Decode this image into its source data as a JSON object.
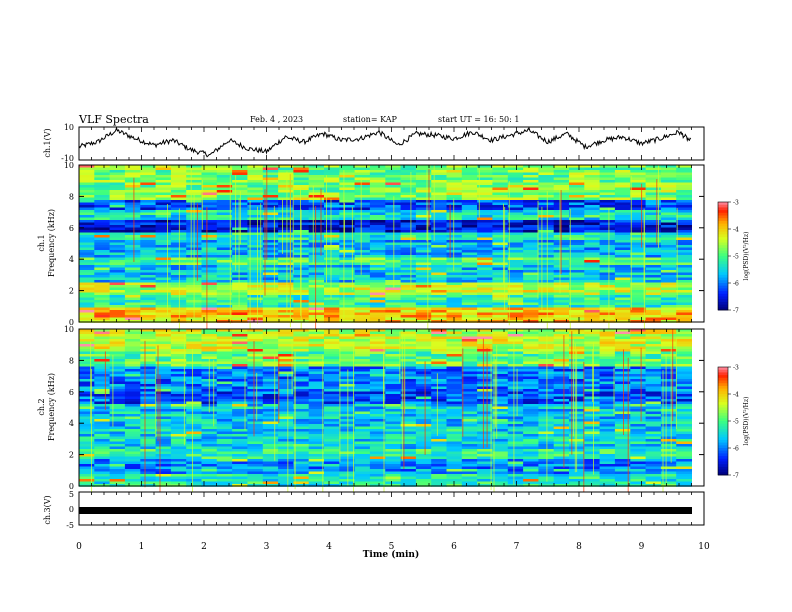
{
  "header": {
    "title": "VLF Spectra",
    "date": "Feb. 4 , 2023",
    "station": "station= KAP",
    "start": "start  UT =   16: 50: 1"
  },
  "chart_data": [
    {
      "id": "ch1-waveform",
      "type": "line",
      "ylabel": "ch.1(V)",
      "ylim": [
        -10,
        10
      ],
      "yticks": [
        "10",
        "-10"
      ],
      "xlim": [
        0,
        10
      ],
      "series": [
        {
          "x": [
            0,
            0.3,
            0.6,
            0.9,
            1.2,
            1.5,
            1.8,
            2.1,
            2.4,
            2.7,
            3.0,
            3.3,
            3.6,
            3.9,
            4.2,
            4.5,
            4.8,
            5.1,
            5.4,
            5.7,
            6.0,
            6.3,
            6.6,
            6.9,
            7.2,
            7.5,
            7.8,
            8.1,
            8.4,
            8.7,
            9.0,
            9.3,
            9.6,
            9.8
          ],
          "y": [
            -2,
            1,
            8,
            3,
            -1,
            2,
            -4,
            -7,
            2,
            -3,
            -5,
            4,
            1,
            6,
            2,
            3,
            7,
            -1,
            6,
            5,
            3,
            7,
            2,
            5,
            8,
            1,
            6,
            -2,
            2,
            4,
            0,
            3,
            7,
            1
          ]
        }
      ]
    },
    {
      "id": "ch1-spectrogram",
      "type": "heatmap",
      "xlim": [
        0,
        10
      ],
      "ylim": [
        0,
        10
      ],
      "ylabel": "ch.1",
      "ylabel2": "Frequency  (kHz)",
      "yticks": [
        "0",
        "2",
        "4",
        "6",
        "8",
        "10"
      ],
      "colorbar": {
        "label": "log(PSD)(V²/Hz)",
        "ticks": [
          "-3",
          "-4",
          "-5",
          "-6",
          "-7"
        ],
        "range": [
          -7,
          -3
        ]
      },
      "bands": [
        {
          "f0": 0.0,
          "f1": 0.9,
          "level": -4.0
        },
        {
          "f0": 0.9,
          "f1": 1.8,
          "level": -5.2
        },
        {
          "f0": 1.8,
          "f1": 2.5,
          "level": -4.5
        },
        {
          "f0": 2.5,
          "f1": 3.6,
          "level": -5.6
        },
        {
          "f0": 3.6,
          "f1": 4.2,
          "level": -5.0
        },
        {
          "f0": 4.2,
          "f1": 5.2,
          "level": -5.7
        },
        {
          "f0": 5.2,
          "f1": 5.7,
          "level": -5.3
        },
        {
          "f0": 5.7,
          "f1": 6.5,
          "level": -6.6
        },
        {
          "f0": 6.5,
          "f1": 7.1,
          "level": -5.4
        },
        {
          "f0": 7.1,
          "f1": 7.8,
          "level": -6.2
        },
        {
          "f0": 7.8,
          "f1": 10.0,
          "level": -4.8
        }
      ]
    },
    {
      "id": "ch2-spectrogram",
      "type": "heatmap",
      "xlim": [
        0,
        10
      ],
      "ylim": [
        0,
        10
      ],
      "ylabel": "ch.2",
      "ylabel2": "Frequency  (kHz)",
      "yticks": [
        "0",
        "2",
        "4",
        "6",
        "8",
        "10"
      ],
      "colorbar": {
        "label": "log(PSD)(V²/Hz)",
        "ticks": [
          "-3",
          "-4",
          "-5",
          "-6",
          "-7"
        ],
        "range": [
          -7,
          -3
        ]
      },
      "bands": [
        {
          "f0": 0.0,
          "f1": 0.8,
          "level": -5.3
        },
        {
          "f0": 0.8,
          "f1": 1.8,
          "level": -5.9
        },
        {
          "f0": 1.8,
          "f1": 2.4,
          "level": -5.2
        },
        {
          "f0": 2.4,
          "f1": 3.8,
          "level": -5.5
        },
        {
          "f0": 3.8,
          "f1": 5.2,
          "level": -5.6
        },
        {
          "f0": 5.2,
          "f1": 6.0,
          "level": -6.2
        },
        {
          "f0": 6.0,
          "f1": 7.6,
          "level": -6.0
        },
        {
          "f0": 7.6,
          "f1": 8.6,
          "level": -4.9
        },
        {
          "f0": 8.6,
          "f1": 10.0,
          "level": -4.4
        }
      ]
    },
    {
      "id": "ch3-waveform",
      "type": "line",
      "ylabel": "ch.3(V)",
      "ylim": [
        -5,
        5
      ],
      "yticks": [
        "5",
        "0",
        "-5"
      ],
      "xlim": [
        0,
        10
      ],
      "series": [
        {
          "x": [
            0,
            9.8
          ],
          "y": [
            0,
            0
          ]
        }
      ]
    }
  ],
  "xaxis": {
    "label": "Time  (min)",
    "ticks": [
      "0",
      "1",
      "2",
      "3",
      "4",
      "5",
      "6",
      "7",
      "8",
      "9",
      "10"
    ]
  }
}
